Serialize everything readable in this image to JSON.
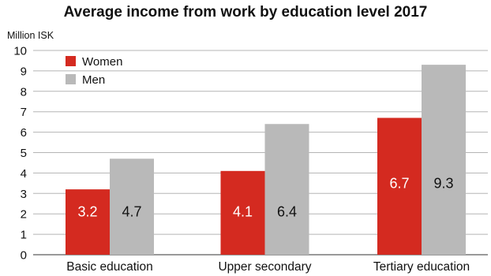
{
  "chart_data": {
    "type": "bar",
    "title": "Average income from work by education level 2017",
    "unit_label": "Million ISK",
    "categories": [
      "Basic education",
      "Upper secondary",
      "Tertiary education"
    ],
    "series": [
      {
        "name": "Women",
        "values": [
          3.2,
          4.1,
          6.7
        ],
        "color": "#d42a20",
        "value_labels": [
          "3.2",
          "4.1",
          "6.7"
        ],
        "label_color": "#ffffff"
      },
      {
        "name": "Men",
        "values": [
          4.7,
          6.4,
          9.3
        ],
        "color": "#b9b9b9",
        "value_labels": [
          "4.7",
          "6.4",
          "9.3"
        ],
        "label_color": "#111111"
      }
    ],
    "ylim": [
      0,
      10
    ],
    "yticks": [
      "0",
      "1",
      "2",
      "3",
      "4",
      "5",
      "6",
      "7",
      "8",
      "9",
      "10"
    ],
    "grid": true,
    "grid_color": "#b5b5b5",
    "legend_position": "top-left"
  }
}
